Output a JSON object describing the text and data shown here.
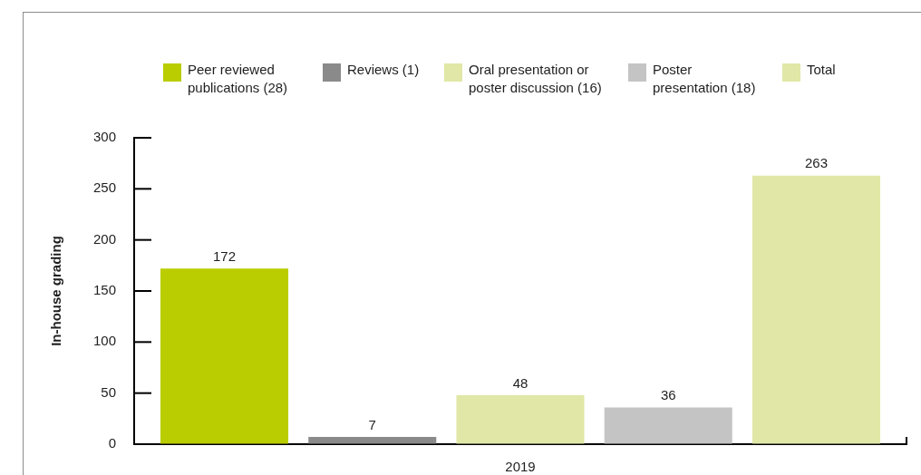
{
  "chart_data": {
    "type": "bar",
    "categories": [
      "2019"
    ],
    "ylabel": "In-house grading",
    "ylim": [
      0,
      300
    ],
    "yticks": [
      0,
      50,
      100,
      150,
      200,
      250,
      300
    ],
    "legend": "top",
    "data_labels": true,
    "series": [
      {
        "name": "Peer reviewed publications (28)",
        "color": "#bacd00",
        "values": [
          172
        ]
      },
      {
        "name": "Reviews (1)",
        "color": "#8a8a8a",
        "values": [
          7
        ]
      },
      {
        "name": "Oral presentation or poster discussion (16)",
        "color": "#e1e7a6",
        "values": [
          48
        ]
      },
      {
        "name": "Poster presentation (18)",
        "color": "#c4c4c4",
        "values": [
          36
        ]
      },
      {
        "name": "Total",
        "color": "#e1e7a6",
        "values": [
          263
        ]
      }
    ]
  }
}
